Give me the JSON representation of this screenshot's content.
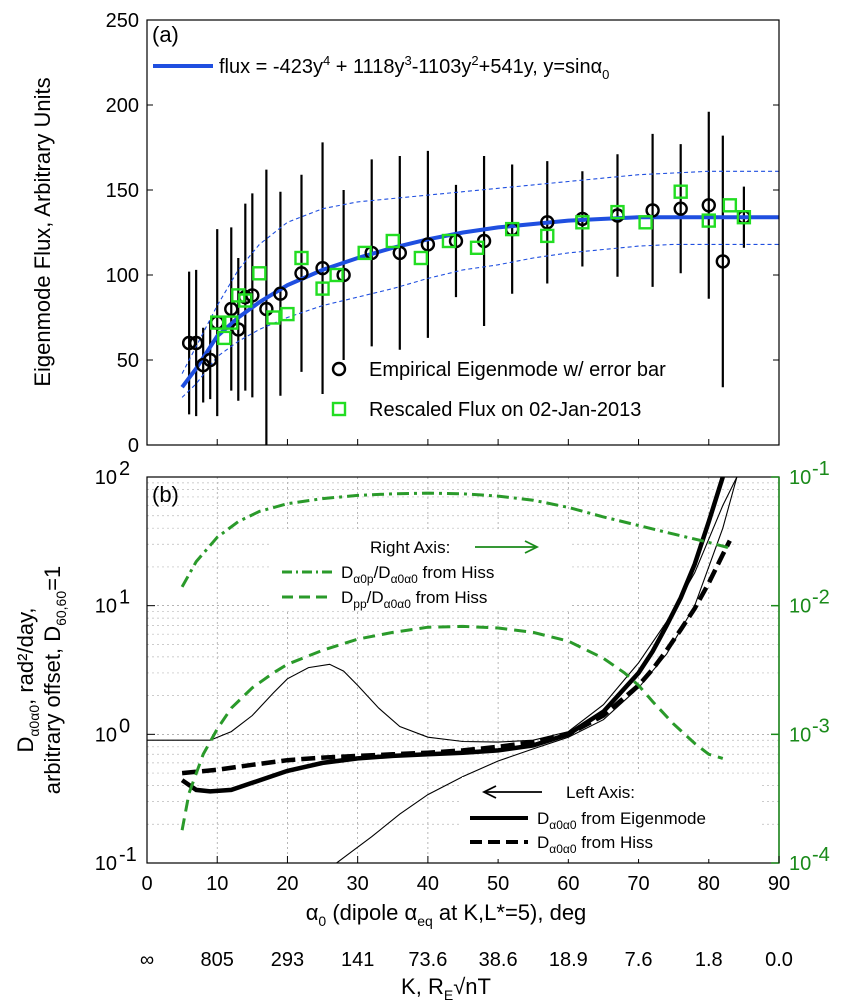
{
  "colors": {
    "fit": "#1f4fe0",
    "band": "#1f4fe0",
    "eigen": "#000000",
    "rescaled": "#22dd22",
    "green_axis": "#1a8a1a",
    "green_line": "#2a9a2a"
  },
  "chart_data": [
    {
      "type": "scatter",
      "panel_label": "(a)",
      "ylabel": "Eigenmode Flux, Arbitrary Units",
      "xlim": [
        0,
        90
      ],
      "ylim": [
        0,
        250
      ],
      "yticks": [
        "0",
        "50",
        "100",
        "150",
        "200",
        "250"
      ],
      "fit_formula": {
        "pre": "flux = -423y",
        "s1": "4",
        "m1": " + 1118y",
        "s2": "3",
        "m2": "-1103y",
        "s3": "2",
        "m3": "+541y, y=sinα",
        "s4": "0"
      },
      "fit_curve": {
        "x": [
          5,
          7,
          10,
          13,
          16,
          20,
          25,
          30,
          35,
          40,
          45,
          50,
          55,
          60,
          65,
          70,
          75,
          80,
          85,
          90
        ],
        "y": [
          34,
          45,
          64,
          75,
          84,
          94,
          103,
          110,
          116,
          121,
          125,
          128,
          130,
          132,
          133,
          134,
          134,
          134,
          134,
          134
        ]
      },
      "fit_band_upper": {
        "x": [
          5,
          7,
          10,
          13,
          16,
          20,
          25,
          30,
          35,
          40,
          45,
          50,
          55,
          60,
          65,
          70,
          75,
          80,
          85,
          90
        ],
        "y": [
          42,
          58,
          82,
          103,
          118,
          131,
          139,
          143,
          145,
          147,
          149,
          151,
          153,
          155,
          157,
          159,
          160,
          161,
          161,
          161
        ]
      },
      "fit_band_lower": {
        "x": [
          5,
          7,
          10,
          13,
          16,
          20,
          25,
          30,
          35,
          40,
          45,
          50,
          55,
          60,
          65,
          70,
          75,
          80,
          85,
          90
        ],
        "y": [
          28,
          36,
          52,
          61,
          68,
          75,
          82,
          87,
          92,
          98,
          103,
          106,
          110,
          113,
          115,
          117,
          118,
          118,
          118,
          118
        ]
      },
      "series": [
        {
          "name": "Empirical Eigenmode w/ error bar",
          "marker": "circle",
          "x": [
            6,
            7,
            8,
            9,
            10,
            12,
            13,
            14,
            15,
            17,
            19,
            22,
            25,
            28,
            32,
            36,
            40,
            44,
            48,
            52,
            57,
            62,
            67,
            72,
            76,
            80,
            82,
            85
          ],
          "y": [
            60,
            60,
            47,
            50,
            72,
            80,
            68,
            87,
            88,
            80,
            89,
            101,
            104,
            100,
            113,
            113,
            118,
            120,
            120,
            127,
            131,
            133,
            135,
            138,
            139,
            141,
            108,
            134
          ],
          "err": [
            42,
            43,
            22,
            23,
            55,
            48,
            42,
            55,
            60,
            82,
            60,
            58,
            74,
            50,
            55,
            57,
            55,
            33,
            50,
            38,
            36,
            28,
            36,
            45,
            38,
            55,
            74,
            18
          ]
        },
        {
          "name": "Rescaled Flux on 02-Jan-2013",
          "marker": "square",
          "x": [
            10,
            11,
            12,
            13,
            14,
            16,
            18,
            20,
            22,
            25,
            27,
            31,
            35,
            39,
            43,
            47,
            52,
            57,
            62,
            67,
            71,
            76,
            80,
            83,
            85
          ],
          "y": [
            72,
            63,
            72,
            88,
            85,
            101,
            75,
            77,
            110,
            92,
            100,
            113,
            120,
            110,
            120,
            116,
            127,
            123,
            131,
            137,
            131,
            149,
            132,
            141,
            134
          ]
        }
      ]
    },
    {
      "type": "line",
      "panel_label": "(b)",
      "xlabel_main": "α",
      "xlabel_sub": "0",
      "xlabel_rest": " (dipole α",
      "xlabel_sub2": "eq",
      "xlabel_end": " at K,L*=5), deg",
      "ylabel_lines": [
        "arbitrary offset, D",
        "rad²/day,"
      ],
      "ylabel_sym": "D",
      "ylabel_sub": "α0α0",
      "ylabel_tail": ",",
      "ylabel_sub60": "60,60",
      "ylabel_eq": "=1",
      "xlim": [
        0,
        90
      ],
      "xticks": [
        "0",
        "10",
        "20",
        "30",
        "40",
        "50",
        "60",
        "70",
        "80",
        "90"
      ],
      "ylim_left": [
        0.1,
        100
      ],
      "yticks_left": [
        {
          "b": "10",
          "e": "-1"
        },
        {
          "b": "10",
          "e": "0"
        },
        {
          "b": "10",
          "e": "1"
        },
        {
          "b": "10",
          "e": "2"
        }
      ],
      "ylim_right": [
        0.0001,
        0.1
      ],
      "yticks_right": [
        {
          "b": "10",
          "e": "-4"
        },
        {
          "b": "10",
          "e": "-3"
        },
        {
          "b": "10",
          "e": "-2"
        },
        {
          "b": "10",
          "e": "-1"
        }
      ],
      "k_axis": {
        "ticks": [
          "∞",
          "805",
          "293",
          "141",
          "73.6",
          "38.6",
          "18.9",
          "7.6",
          "1.8",
          "0.0"
        ],
        "label": "K, R",
        "label_sub": "E",
        "label_rest": "√nT"
      },
      "legend_right": {
        "title": "Right Axis:",
        "items": [
          {
            "style": "dash-dot",
            "pre": "D",
            "sub1": "α0p",
            "mid": "/D",
            "sub2": "α0α0",
            "post": " from Hiss"
          },
          {
            "style": "dashed",
            "pre": "D",
            "sub1": "pp",
            "mid": "/D",
            "sub2": "α0α0",
            "post": " from Hiss"
          }
        ]
      },
      "legend_left": {
        "title": "Left Axis:",
        "items": [
          {
            "style": "solid",
            "pre": "D",
            "sub1": "α0α0",
            "post": " from Eigenmode"
          },
          {
            "style": "dashed",
            "pre": "D",
            "sub1": "α0α0",
            "post": " from Hiss"
          }
        ]
      },
      "series": [
        {
          "name": "Dα0α0 from Eigenmode",
          "axis": "left",
          "style": "thick-solid",
          "x": [
            5,
            7,
            9,
            12,
            15,
            20,
            25,
            30,
            35,
            40,
            45,
            50,
            55,
            60,
            65,
            70,
            72,
            74,
            76,
            78,
            80,
            82
          ],
          "y": [
            0.44,
            0.37,
            0.36,
            0.37,
            0.42,
            0.52,
            0.6,
            0.65,
            0.68,
            0.7,
            0.72,
            0.75,
            0.82,
            1.0,
            1.5,
            3.0,
            4.4,
            7.0,
            11.5,
            21,
            45,
            100
          ]
        },
        {
          "name": "Dα0α0 from Hiss",
          "axis": "left",
          "style": "thick-dashed",
          "x": [
            5,
            10,
            15,
            20,
            25,
            30,
            35,
            40,
            45,
            50,
            55,
            60,
            65,
            70,
            72,
            74,
            76,
            78,
            80,
            82,
            83
          ],
          "y": [
            0.5,
            0.53,
            0.58,
            0.63,
            0.66,
            0.68,
            0.7,
            0.72,
            0.75,
            0.8,
            0.87,
            1.0,
            1.4,
            2.4,
            3.2,
            4.5,
            6.5,
            9.5,
            15,
            25,
            32
          ]
        },
        {
          "name": "eigen upper bound",
          "axis": "left",
          "style": "thin-solid",
          "x": [
            0,
            5,
            9,
            12,
            15,
            18,
            20,
            23,
            26,
            28,
            30,
            33,
            36,
            40,
            45,
            50,
            55,
            60,
            65,
            70,
            74,
            78,
            82,
            84
          ],
          "y": [
            0.9,
            0.9,
            0.9,
            1.05,
            1.4,
            2.1,
            2.7,
            3.3,
            3.5,
            3.1,
            2.4,
            1.6,
            1.15,
            0.95,
            0.88,
            0.87,
            0.9,
            1.05,
            1.7,
            3.6,
            7.5,
            18,
            60,
            100
          ]
        },
        {
          "name": "eigen lower bound",
          "axis": "left",
          "style": "thin-solid",
          "x": [
            0,
            5,
            10,
            20,
            26,
            27,
            28,
            32,
            36,
            40,
            45,
            50,
            55,
            60,
            65,
            70,
            74,
            78,
            82,
            84
          ],
          "y": [
            0.1,
            0.1,
            0.1,
            0.1,
            0.1,
            0.1,
            0.11,
            0.16,
            0.24,
            0.34,
            0.47,
            0.62,
            0.77,
            0.95,
            1.3,
            2.3,
            4.2,
            10,
            40,
            100
          ]
        },
        {
          "name": "Dα0p/Dα0α0 from Hiss",
          "axis": "right",
          "style": "dash-dot",
          "x": [
            5,
            7,
            10,
            13,
            16,
            20,
            25,
            30,
            35,
            40,
            45,
            50,
            55,
            60,
            65,
            70,
            75,
            80,
            83
          ],
          "y": [
            0.014,
            0.022,
            0.034,
            0.045,
            0.054,
            0.062,
            0.068,
            0.072,
            0.074,
            0.075,
            0.074,
            0.071,
            0.066,
            0.058,
            0.049,
            0.042,
            0.036,
            0.031,
            0.028
          ]
        },
        {
          "name": "Dpp/Dα0α0 from Hiss",
          "axis": "right",
          "style": "dashed",
          "x": [
            5,
            6,
            8,
            10,
            12,
            15,
            18,
            20,
            25,
            30,
            35,
            40,
            45,
            50,
            55,
            60,
            65,
            68,
            70,
            72,
            75,
            78,
            80,
            82
          ],
          "y": [
            0.00018,
            0.00035,
            0.0007,
            0.0011,
            0.0016,
            0.0023,
            0.003,
            0.0035,
            0.0045,
            0.0055,
            0.0062,
            0.0068,
            0.0069,
            0.0067,
            0.0062,
            0.0053,
            0.0039,
            0.003,
            0.0024,
            0.0018,
            0.0012,
            0.00085,
            0.0007,
            0.00065
          ]
        }
      ]
    }
  ]
}
